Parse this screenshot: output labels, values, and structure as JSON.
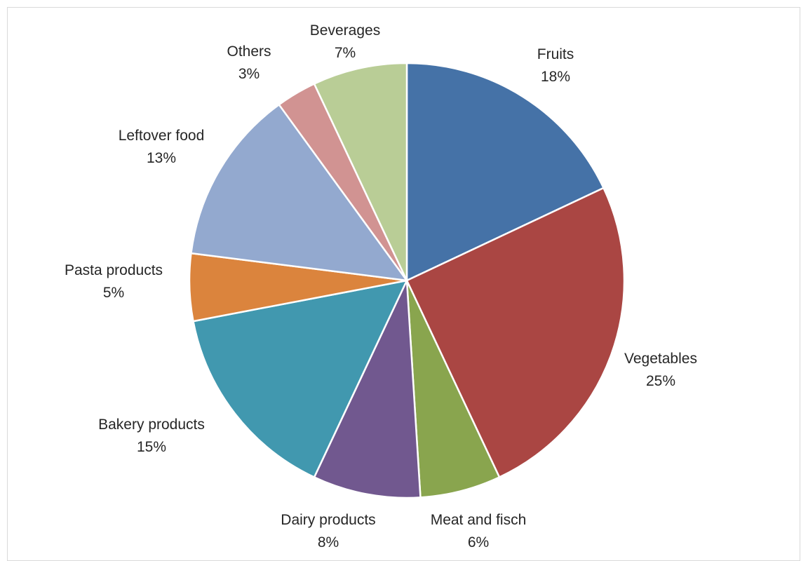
{
  "chart_data": {
    "type": "pie",
    "title": "",
    "start_angle_deg": 0,
    "direction": "clockwise",
    "legend": "none",
    "slices": [
      {
        "label": "Fruits",
        "value": 18,
        "pct_label": "18%",
        "color": "#4572a7"
      },
      {
        "label": "Vegetables",
        "value": 25,
        "pct_label": "25%",
        "color": "#aa4643"
      },
      {
        "label": "Meat and fisch",
        "value": 6,
        "pct_label": "6%",
        "color": "#89a54e"
      },
      {
        "label": "Dairy products",
        "value": 8,
        "pct_label": "8%",
        "color": "#71588f"
      },
      {
        "label": "Bakery products",
        "value": 15,
        "pct_label": "15%",
        "color": "#4198af"
      },
      {
        "label": "Pasta products",
        "value": 5,
        "pct_label": "5%",
        "color": "#db843d"
      },
      {
        "label": "Leftover food",
        "value": 13,
        "pct_label": "13%",
        "color": "#93a9cf"
      },
      {
        "label": "Others",
        "value": 3,
        "pct_label": "3%",
        "color": "#d19392"
      },
      {
        "label": "Beverages",
        "value": 7,
        "pct_label": "7%",
        "color": "#b9cd96"
      }
    ]
  }
}
